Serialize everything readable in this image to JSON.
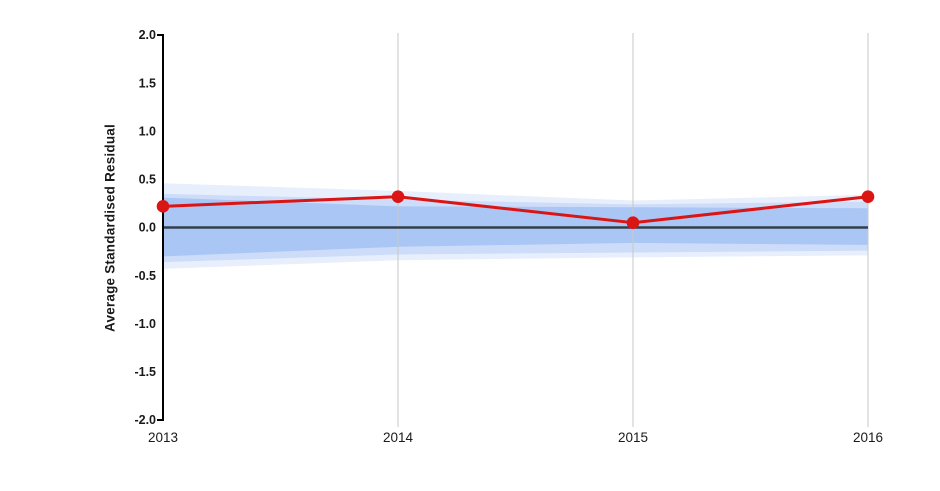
{
  "chart_data": {
    "type": "line",
    "title": "",
    "xlabel": "",
    "ylabel": "Average Standardised Residual",
    "x_labels": [
      "2013",
      "2014",
      "2015",
      "2016"
    ],
    "y_tick_labels": [
      "2.0",
      "1.5",
      "1.0",
      "0.5",
      "0.0",
      "-0.5",
      "-1.0",
      "-1.5",
      "-2.0"
    ],
    "ylim": [
      -2.0,
      2.0
    ],
    "grid": "vertical-gridlines-at-years",
    "legend": "none",
    "series": [
      {
        "name": "average-standardised-residual",
        "marker": "circle",
        "color": "#db1414",
        "values": [
          0.22,
          0.32,
          0.05,
          0.32
        ]
      }
    ],
    "bands": [
      {
        "name": "outer-confidence-band",
        "color": "#e8effc",
        "upper": [
          0.46,
          0.38,
          0.28,
          0.34
        ],
        "lower": [
          -0.43,
          -0.34,
          -0.31,
          -0.29
        ]
      },
      {
        "name": "middle-confidence-band",
        "color": "#ccdcf9",
        "upper": [
          0.35,
          0.29,
          0.24,
          0.27
        ],
        "lower": [
          -0.36,
          -0.28,
          -0.26,
          -0.24
        ]
      },
      {
        "name": "inner-confidence-band",
        "color": "#a9c6f4",
        "upper": [
          0.31,
          0.22,
          0.21,
          0.2
        ],
        "lower": [
          -0.3,
          -0.2,
          -0.16,
          -0.18
        ]
      }
    ],
    "reference_line": {
      "value": 0.0,
      "color": "#333f4d"
    },
    "colors": {
      "grid": "#c9c9c9",
      "axis": "#000000",
      "tick_text": "#1a1a1a"
    }
  }
}
